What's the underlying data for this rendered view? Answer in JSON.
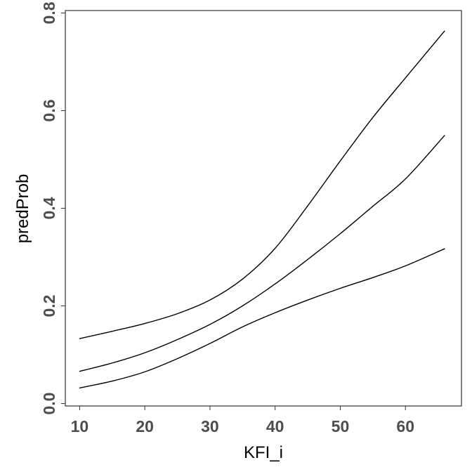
{
  "chart_data": {
    "type": "line",
    "title": "",
    "xlabel": "KFI_i",
    "ylabel": "predProb",
    "xlim": [
      7.8,
      68.6
    ],
    "ylim": [
      -0.005,
      0.805
    ],
    "xticks": [
      10,
      20,
      30,
      40,
      50,
      60
    ],
    "yticks": [
      0.0,
      0.2,
      0.4,
      0.6,
      0.8
    ],
    "xtick_labels": [
      "10",
      "20",
      "30",
      "40",
      "50",
      "60"
    ],
    "ytick_labels": [
      "0.0",
      "0.2",
      "0.4",
      "0.6",
      "0.8"
    ],
    "grid": false,
    "legend": "none",
    "line_color": "#000000",
    "x": [
      10,
      15,
      20,
      25,
      30,
      35,
      40,
      45,
      50,
      55,
      60,
      66
    ],
    "series": [
      {
        "values": [
          0.133,
          0.148,
          0.164,
          0.184,
          0.212,
          0.255,
          0.318,
          0.405,
          0.497,
          0.586,
          0.667,
          0.763
        ]
      },
      {
        "values": [
          0.066,
          0.083,
          0.104,
          0.131,
          0.162,
          0.2,
          0.245,
          0.295,
          0.348,
          0.404,
          0.46,
          0.549
        ]
      },
      {
        "values": [
          0.032,
          0.046,
          0.065,
          0.092,
          0.123,
          0.157,
          0.186,
          0.212,
          0.236,
          0.258,
          0.282,
          0.317
        ]
      }
    ]
  }
}
